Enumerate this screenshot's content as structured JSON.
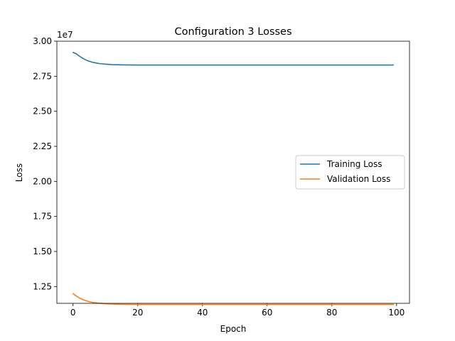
{
  "chart_data": {
    "type": "line",
    "title": "Configuration 3 Losses",
    "xlabel": "Epoch",
    "ylabel": "Loss",
    "y_offset_label": "1e7",
    "y_scale": 10000000,
    "xlim": [
      -5,
      104
    ],
    "ylim": [
      11.3,
      30.0
    ],
    "xticks": [
      0,
      20,
      40,
      60,
      80,
      100
    ],
    "xtick_labels": [
      "0",
      "20",
      "40",
      "60",
      "80",
      "100"
    ],
    "yticks": [
      12.5,
      15.0,
      17.5,
      20.0,
      22.5,
      25.0,
      27.5,
      30.0
    ],
    "ytick_labels": [
      "1.25",
      "1.50",
      "1.75",
      "2.00",
      "2.25",
      "2.50",
      "2.75",
      "3.00"
    ],
    "legend_position": "center-right",
    "series": [
      {
        "name": "Training Loss",
        "color": "#1f77b4",
        "x": [
          0,
          1,
          2,
          3,
          4,
          5,
          6,
          7,
          8,
          10,
          12,
          15,
          20,
          30,
          50,
          99
        ],
        "values": [
          29.2,
          29.1,
          28.93,
          28.78,
          28.66,
          28.57,
          28.5,
          28.45,
          28.41,
          28.36,
          28.33,
          28.31,
          28.3,
          28.3,
          28.3,
          28.3
        ]
      },
      {
        "name": "Validation Loss",
        "color": "#ff7f0e",
        "x": [
          0,
          1,
          2,
          3,
          4,
          5,
          6,
          7,
          8,
          10,
          12,
          15,
          20,
          30,
          50,
          99
        ],
        "values": [
          12.0,
          11.82,
          11.68,
          11.57,
          11.48,
          11.42,
          11.37,
          11.34,
          11.31,
          11.27,
          11.25,
          11.23,
          11.22,
          11.22,
          11.22,
          11.22
        ]
      }
    ]
  }
}
